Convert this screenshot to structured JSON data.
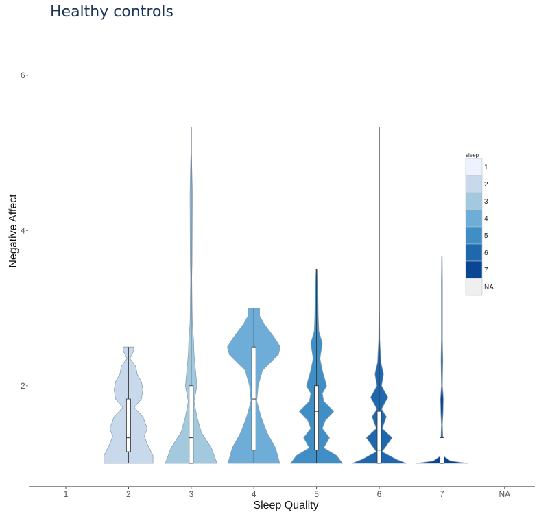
{
  "title": "Healthy controls",
  "chart_data": {
    "type": "violin",
    "title": "Healthy controls",
    "xlabel": "Sleep Quality",
    "ylabel": "Negative Affect",
    "categories": [
      "1",
      "2",
      "3",
      "4",
      "5",
      "6",
      "7",
      "NA"
    ],
    "yticks": [
      "2",
      "4",
      "6"
    ],
    "ylim": [
      1,
      6
    ],
    "grid": false,
    "legend": {
      "title": "sleep",
      "position": "right",
      "items": [
        {
          "label": "1",
          "color": "#eef2fc"
        },
        {
          "label": "2",
          "color": "#c8d9ec"
        },
        {
          "label": "3",
          "color": "#a3c9df"
        },
        {
          "label": "4",
          "color": "#6eadd7"
        },
        {
          "label": "5",
          "color": "#3f8ec6"
        },
        {
          "label": "6",
          "color": "#2068ae"
        },
        {
          "label": "7",
          "color": "#0b4694"
        },
        {
          "label": "NA",
          "color": "#efefef"
        }
      ]
    },
    "series": [
      {
        "category": "2",
        "color": "#c8d9ec",
        "min": 1,
        "max": 2.5,
        "q1": 1.15,
        "median": 1.33,
        "q3": 1.83,
        "density": [
          [
            1.0,
            0.85
          ],
          [
            1.1,
            0.85
          ],
          [
            1.25,
            0.65
          ],
          [
            1.35,
            0.55
          ],
          [
            1.45,
            0.65
          ],
          [
            1.6,
            0.5
          ],
          [
            1.72,
            0.2
          ],
          [
            1.83,
            0.45
          ],
          [
            1.95,
            0.5
          ],
          [
            2.05,
            0.45
          ],
          [
            2.15,
            0.3
          ],
          [
            2.25,
            0.25
          ],
          [
            2.35,
            0.05
          ],
          [
            2.45,
            0.18
          ],
          [
            2.5,
            0.18
          ]
        ]
      },
      {
        "category": "3",
        "color": "#a3c9df",
        "min": 1,
        "max": 5.33,
        "q1": 1.0,
        "median": 1.33,
        "q3": 2.0,
        "density": [
          [
            1.0,
            0.9
          ],
          [
            1.2,
            0.7
          ],
          [
            1.4,
            0.35
          ],
          [
            1.6,
            0.2
          ],
          [
            1.8,
            0.1
          ],
          [
            2.0,
            0.2
          ],
          [
            2.2,
            0.15
          ],
          [
            2.4,
            0.1
          ],
          [
            2.6,
            0.08
          ],
          [
            2.8,
            0.04
          ],
          [
            3.0,
            0.03
          ],
          [
            3.4,
            0.02
          ],
          [
            3.6,
            0.03
          ],
          [
            4.5,
            0.04
          ],
          [
            5.0,
            0.01
          ],
          [
            5.33,
            0.01
          ]
        ]
      },
      {
        "category": "4",
        "color": "#6eadd7",
        "min": 1,
        "max": 3.0,
        "q1": 1.17,
        "median": 1.83,
        "q3": 2.5,
        "density": [
          [
            1.0,
            0.9
          ],
          [
            1.2,
            0.75
          ],
          [
            1.4,
            0.45
          ],
          [
            1.6,
            0.25
          ],
          [
            1.8,
            0.1
          ],
          [
            2.0,
            0.15
          ],
          [
            2.2,
            0.3
          ],
          [
            2.4,
            0.85
          ],
          [
            2.5,
            0.92
          ],
          [
            2.6,
            0.75
          ],
          [
            2.8,
            0.35
          ],
          [
            2.9,
            0.2
          ],
          [
            3.0,
            0.2
          ]
        ]
      },
      {
        "category": "5",
        "color": "#3f8ec6",
        "min": 1,
        "max": 3.5,
        "q1": 1.17,
        "median": 1.67,
        "q3": 2.0,
        "density": [
          [
            1.0,
            0.9
          ],
          [
            1.1,
            0.7
          ],
          [
            1.2,
            0.25
          ],
          [
            1.33,
            0.45
          ],
          [
            1.45,
            0.2
          ],
          [
            1.55,
            0.3
          ],
          [
            1.67,
            0.6
          ],
          [
            1.8,
            0.25
          ],
          [
            1.9,
            0.2
          ],
          [
            2.0,
            0.35
          ],
          [
            2.2,
            0.2
          ],
          [
            2.35,
            0.12
          ],
          [
            2.55,
            0.2
          ],
          [
            2.7,
            0.08
          ],
          [
            2.9,
            0.06
          ],
          [
            3.1,
            0.05
          ],
          [
            3.3,
            0.04
          ],
          [
            3.5,
            0.02
          ]
        ]
      },
      {
        "category": "6",
        "color": "#2068ae",
        "min": 1,
        "max": 5.33,
        "q1": 1.0,
        "median": 1.17,
        "q3": 1.67,
        "density": [
          [
            1.0,
            0.95
          ],
          [
            1.05,
            0.6
          ],
          [
            1.15,
            0.1
          ],
          [
            1.33,
            0.45
          ],
          [
            1.45,
            0.1
          ],
          [
            1.6,
            0.25
          ],
          [
            1.7,
            0.08
          ],
          [
            1.85,
            0.3
          ],
          [
            2.0,
            0.08
          ],
          [
            2.15,
            0.15
          ],
          [
            2.3,
            0.06
          ],
          [
            2.6,
            0.02
          ],
          [
            3.0,
            0.01
          ],
          [
            4.0,
            0.01
          ],
          [
            5.0,
            0.01
          ],
          [
            5.33,
            0.01
          ]
        ]
      },
      {
        "category": "7",
        "color": "#0b4694",
        "min": 1,
        "max": 3.67,
        "q1": 1.0,
        "median": 1.0,
        "q3": 1.33,
        "density": [
          [
            1.0,
            0.9
          ],
          [
            1.03,
            0.3
          ],
          [
            1.1,
            0.03
          ],
          [
            1.2,
            0.06
          ],
          [
            1.35,
            0.03
          ],
          [
            1.5,
            0.02
          ],
          [
            1.67,
            0.04
          ],
          [
            1.83,
            0.05
          ],
          [
            2.0,
            0.02
          ],
          [
            2.33,
            0.03
          ],
          [
            2.6,
            0.02
          ],
          [
            3.0,
            0.02
          ],
          [
            3.33,
            0.02
          ],
          [
            3.67,
            0.01
          ]
        ]
      }
    ]
  }
}
